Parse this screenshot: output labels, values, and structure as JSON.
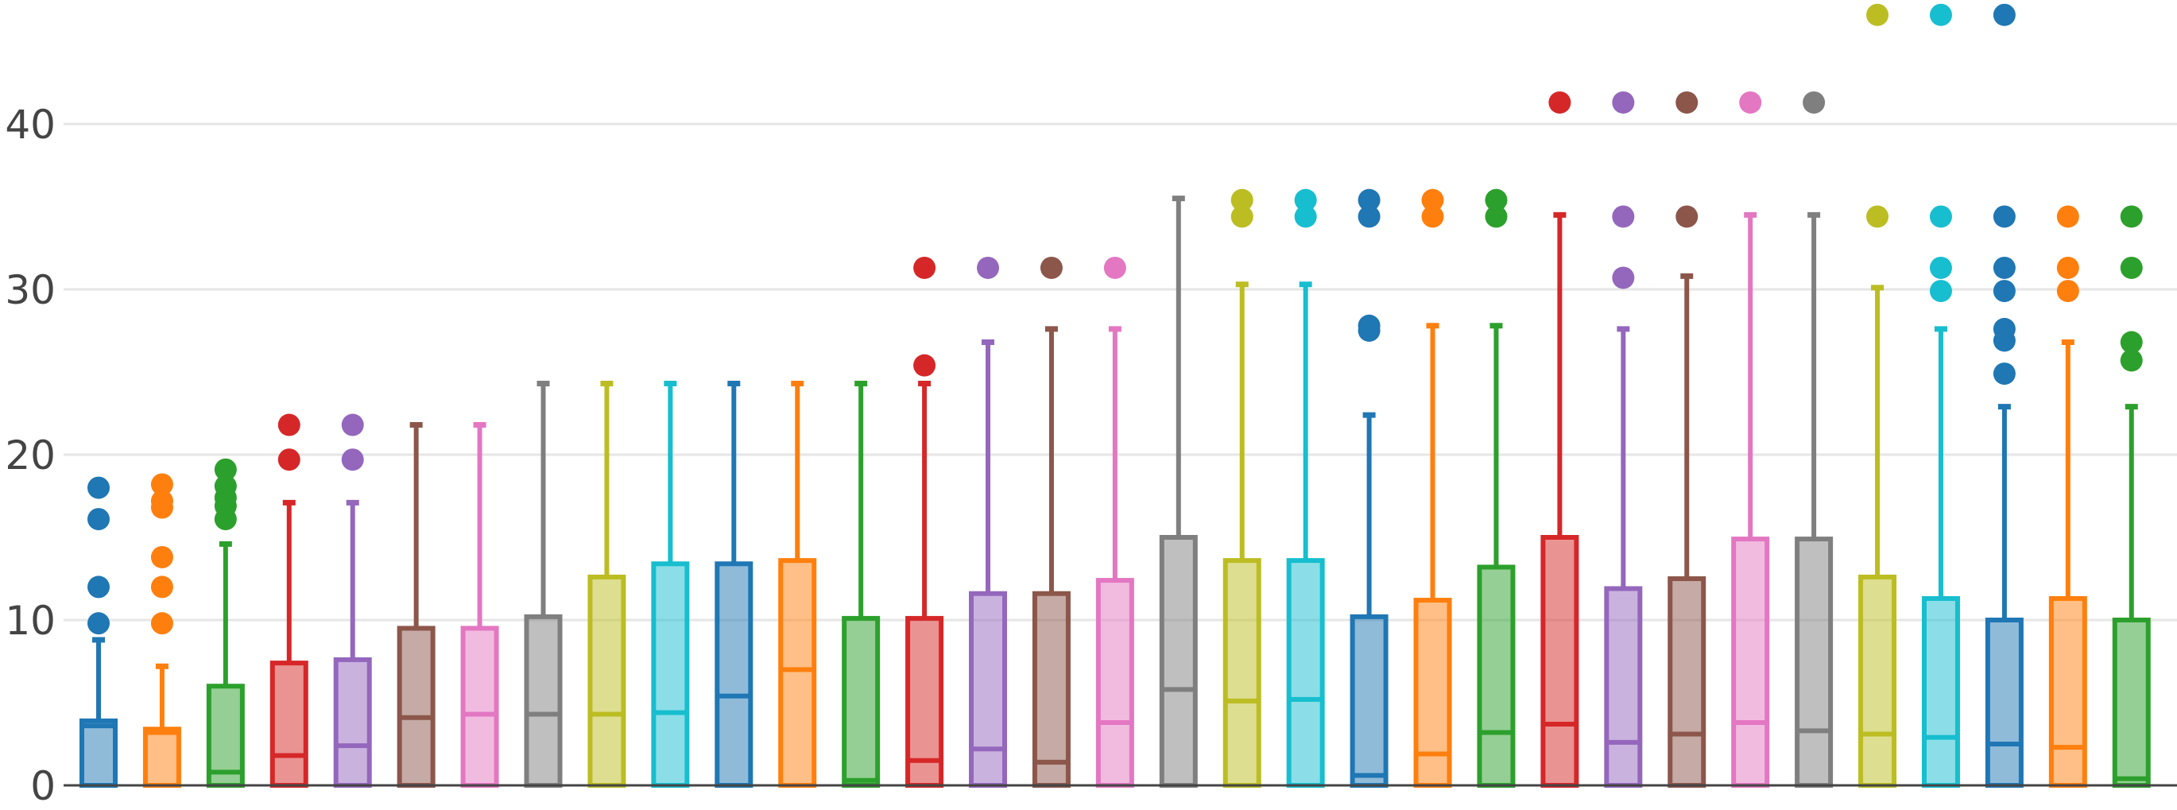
{
  "chart_data": {
    "type": "box",
    "title": "",
    "xlabel": "",
    "ylabel": "",
    "ylim": [
      0,
      48
    ],
    "y_ticks": [
      0,
      10,
      20,
      30,
      40
    ],
    "y_tick_labels": [
      "0",
      "10",
      "20",
      "30",
      "40"
    ],
    "grid": true,
    "legend": "none",
    "boxes": [
      {
        "color": "#1f77b4",
        "q1": 0,
        "median": 3.6,
        "q3": 3.9,
        "lower": 0,
        "upper": 8.8,
        "outliers": [
          9.8,
          12.0,
          16.1,
          18.0
        ]
      },
      {
        "color": "#ff7f0e",
        "q1": 0,
        "median": 3.2,
        "q3": 3.4,
        "lower": 0,
        "upper": 7.2,
        "outliers": [
          9.8,
          12.0,
          13.8,
          16.8,
          17.2,
          18.2
        ]
      },
      {
        "color": "#2ca02c",
        "q1": 0,
        "median": 0.8,
        "q3": 6.0,
        "lower": 0,
        "upper": 14.6,
        "outliers": [
          16.1,
          16.9,
          17.4,
          18.1,
          19.1
        ]
      },
      {
        "color": "#d62728",
        "q1": 0,
        "median": 1.8,
        "q3": 7.4,
        "lower": 0,
        "upper": 17.1,
        "outliers": [
          19.7,
          21.8
        ]
      },
      {
        "color": "#9467bd",
        "q1": 0,
        "median": 2.4,
        "q3": 7.6,
        "lower": 0,
        "upper": 17.1,
        "outliers": [
          19.7,
          21.8
        ]
      },
      {
        "color": "#8c564b",
        "q1": 0,
        "median": 4.1,
        "q3": 9.5,
        "lower": 0,
        "upper": 21.8,
        "outliers": []
      },
      {
        "color": "#e377c2",
        "q1": 0,
        "median": 4.3,
        "q3": 9.5,
        "lower": 0,
        "upper": 21.8,
        "outliers": []
      },
      {
        "color": "#7f7f7f",
        "q1": 0,
        "median": 4.3,
        "q3": 10.2,
        "lower": 0,
        "upper": 24.3,
        "outliers": []
      },
      {
        "color": "#bcbd22",
        "q1": 0,
        "median": 4.3,
        "q3": 12.6,
        "lower": 0,
        "upper": 24.3,
        "outliers": []
      },
      {
        "color": "#17becf",
        "q1": 0,
        "median": 4.4,
        "q3": 13.4,
        "lower": 0,
        "upper": 24.3,
        "outliers": []
      },
      {
        "color": "#1f77b4",
        "q1": 0,
        "median": 5.4,
        "q3": 13.4,
        "lower": 0,
        "upper": 24.3,
        "outliers": []
      },
      {
        "color": "#ff7f0e",
        "q1": 0,
        "median": 7.0,
        "q3": 13.6,
        "lower": 0,
        "upper": 24.3,
        "outliers": []
      },
      {
        "color": "#2ca02c",
        "q1": 0,
        "median": 0.3,
        "q3": 10.1,
        "lower": 0,
        "upper": 24.3,
        "outliers": []
      },
      {
        "color": "#d62728",
        "q1": 0,
        "median": 1.5,
        "q3": 10.1,
        "lower": 0,
        "upper": 24.3,
        "outliers": [
          25.4,
          31.3
        ]
      },
      {
        "color": "#9467bd",
        "q1": 0,
        "median": 2.2,
        "q3": 11.6,
        "lower": 0,
        "upper": 26.8,
        "outliers": [
          31.3
        ]
      },
      {
        "color": "#8c564b",
        "q1": 0,
        "median": 1.4,
        "q3": 11.6,
        "lower": 0,
        "upper": 27.6,
        "outliers": [
          31.3
        ]
      },
      {
        "color": "#e377c2",
        "q1": 0,
        "median": 3.8,
        "q3": 12.4,
        "lower": 0,
        "upper": 27.6,
        "outliers": [
          31.3
        ]
      },
      {
        "color": "#7f7f7f",
        "q1": 0,
        "median": 5.8,
        "q3": 15.0,
        "lower": 0,
        "upper": 35.5,
        "outliers": []
      },
      {
        "color": "#bcbd22",
        "q1": 0,
        "median": 5.1,
        "q3": 13.6,
        "lower": 0,
        "upper": 30.3,
        "outliers": [
          34.4,
          35.4
        ]
      },
      {
        "color": "#17becf",
        "q1": 0,
        "median": 5.2,
        "q3": 13.6,
        "lower": 0,
        "upper": 30.3,
        "outliers": [
          34.4,
          35.4
        ]
      },
      {
        "color": "#1f77b4",
        "q1": 0,
        "median": 0.6,
        "q3": 10.2,
        "lower": 0,
        "upper": 22.4,
        "outliers": [
          27.5,
          27.8,
          34.4,
          35.4
        ]
      },
      {
        "color": "#ff7f0e",
        "q1": 0,
        "median": 1.9,
        "q3": 11.2,
        "lower": 0,
        "upper": 27.8,
        "outliers": [
          34.4,
          35.4
        ]
      },
      {
        "color": "#2ca02c",
        "q1": 0,
        "median": 3.2,
        "q3": 13.2,
        "lower": 0,
        "upper": 27.8,
        "outliers": [
          34.4,
          35.4
        ]
      },
      {
        "color": "#d62728",
        "q1": 0,
        "median": 3.7,
        "q3": 15.0,
        "lower": 0,
        "upper": 34.5,
        "outliers": [
          41.3
        ]
      },
      {
        "color": "#9467bd",
        "q1": 0,
        "median": 2.6,
        "q3": 11.9,
        "lower": 0,
        "upper": 27.6,
        "outliers": [
          30.7,
          34.4,
          41.3
        ]
      },
      {
        "color": "#8c564b",
        "q1": 0,
        "median": 3.1,
        "q3": 12.5,
        "lower": 0,
        "upper": 30.8,
        "outliers": [
          34.4,
          41.3
        ]
      },
      {
        "color": "#e377c2",
        "q1": 0,
        "median": 3.8,
        "q3": 14.9,
        "lower": 0,
        "upper": 34.5,
        "outliers": [
          41.3
        ]
      },
      {
        "color": "#7f7f7f",
        "q1": 0,
        "median": 3.3,
        "q3": 14.9,
        "lower": 0,
        "upper": 34.5,
        "outliers": [
          41.3
        ]
      },
      {
        "color": "#bcbd22",
        "q1": 0,
        "median": 3.1,
        "q3": 12.6,
        "lower": 0,
        "upper": 30.1,
        "outliers": [
          34.4,
          46.6
        ]
      },
      {
        "color": "#17becf",
        "q1": 0,
        "median": 2.9,
        "q3": 11.3,
        "lower": 0,
        "upper": 27.6,
        "outliers": [
          29.9,
          31.3,
          34.4,
          46.6
        ]
      },
      {
        "color": "#1f77b4",
        "q1": 0,
        "median": 2.5,
        "q3": 10.0,
        "lower": 0,
        "upper": 22.9,
        "outliers": [
          24.9,
          26.9,
          27.6,
          29.9,
          31.3,
          34.4,
          46.6
        ]
      },
      {
        "color": "#ff7f0e",
        "q1": 0,
        "median": 2.3,
        "q3": 11.3,
        "lower": 0,
        "upper": 26.8,
        "outliers": [
          29.9,
          31.3,
          34.4
        ]
      },
      {
        "color": "#2ca02c",
        "q1": 0,
        "median": 0.4,
        "q3": 10.0,
        "lower": 0,
        "upper": 22.9,
        "outliers": [
          25.7,
          26.8,
          31.3,
          34.4
        ]
      }
    ]
  }
}
